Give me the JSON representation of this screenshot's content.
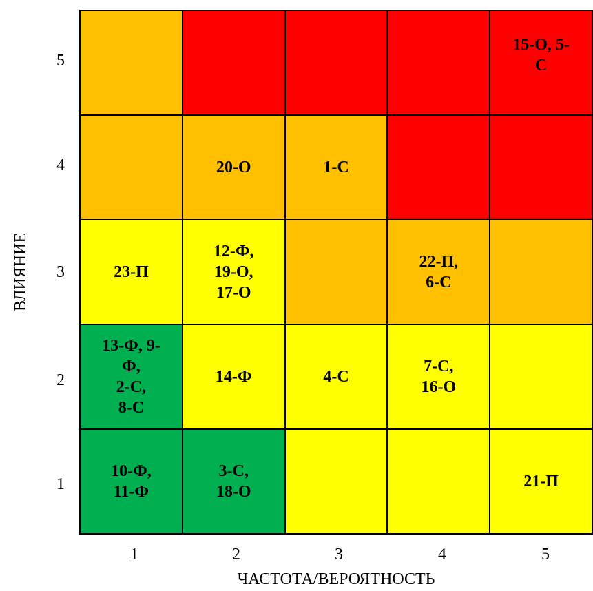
{
  "chart_data": {
    "type": "heatmap",
    "title": "",
    "xlabel": "ЧАСТОТА/ВЕРОЯТНОСТЬ",
    "ylabel": "ВЛИЯНИЕ",
    "x_ticks": [
      "1",
      "2",
      "3",
      "4",
      "5"
    ],
    "y_ticks": [
      "5",
      "4",
      "3",
      "2",
      "1"
    ],
    "colors": {
      "red": "#FF0000",
      "orange": "#FFC000",
      "yellow": "#FFFF00",
      "green": "#00B050"
    },
    "rows": [
      {
        "impact": 5,
        "cells": [
          {
            "frequency": 1,
            "level": "orange",
            "labels": ""
          },
          {
            "frequency": 2,
            "level": "red",
            "labels": ""
          },
          {
            "frequency": 3,
            "level": "red",
            "labels": ""
          },
          {
            "frequency": 4,
            "level": "red",
            "labels": ""
          },
          {
            "frequency": 5,
            "level": "red",
            "labels": "15-О, 5-\nС"
          }
        ]
      },
      {
        "impact": 4,
        "cells": [
          {
            "frequency": 1,
            "level": "orange",
            "labels": ""
          },
          {
            "frequency": 2,
            "level": "orange",
            "labels": "20-О"
          },
          {
            "frequency": 3,
            "level": "orange",
            "labels": "1-С"
          },
          {
            "frequency": 4,
            "level": "red",
            "labels": ""
          },
          {
            "frequency": 5,
            "level": "red",
            "labels": ""
          }
        ]
      },
      {
        "impact": 3,
        "cells": [
          {
            "frequency": 1,
            "level": "yellow",
            "labels": "23-П"
          },
          {
            "frequency": 2,
            "level": "yellow",
            "labels": "12-Ф,\n19-О,\n17-О"
          },
          {
            "frequency": 3,
            "level": "orange",
            "labels": ""
          },
          {
            "frequency": 4,
            "level": "orange",
            "labels": "22-П,\n6-С"
          },
          {
            "frequency": 5,
            "level": "orange",
            "labels": ""
          }
        ]
      },
      {
        "impact": 2,
        "cells": [
          {
            "frequency": 1,
            "level": "green",
            "labels": "13-Ф, 9-\nФ,\n2-С,\n8-С"
          },
          {
            "frequency": 2,
            "level": "yellow",
            "labels": "14-Ф"
          },
          {
            "frequency": 3,
            "level": "yellow",
            "labels": "4-С"
          },
          {
            "frequency": 4,
            "level": "yellow",
            "labels": "7-С,\n16-О"
          },
          {
            "frequency": 5,
            "level": "yellow",
            "labels": ""
          }
        ]
      },
      {
        "impact": 1,
        "cells": [
          {
            "frequency": 1,
            "level": "green",
            "labels": "10-Ф,\n11-Ф"
          },
          {
            "frequency": 2,
            "level": "green",
            "labels": "3-С,\n18-О"
          },
          {
            "frequency": 3,
            "level": "yellow",
            "labels": ""
          },
          {
            "frequency": 4,
            "level": "yellow",
            "labels": ""
          },
          {
            "frequency": 5,
            "level": "yellow",
            "labels": "21-П"
          }
        ]
      }
    ]
  }
}
